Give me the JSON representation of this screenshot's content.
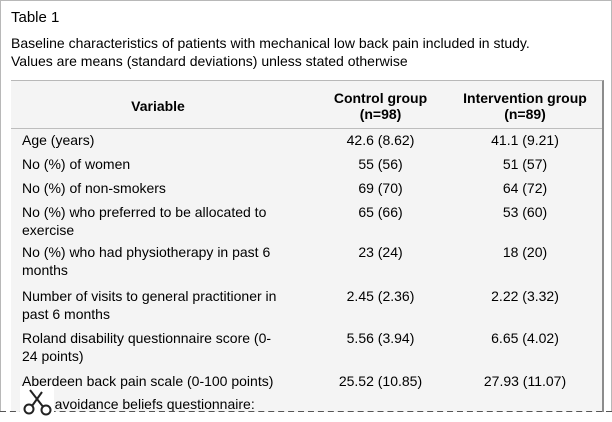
{
  "table": {
    "label": "Table 1",
    "caption_line1": "Baseline characteristics of patients with mechanical low back pain included in study.",
    "caption_line2": "Values are means (standard deviations) unless stated otherwise"
  },
  "headers": {
    "variable": "Variable",
    "control_line1": "Control group",
    "control_line2": "(n=98)",
    "intervention_line1": "Intervention group",
    "intervention_line2": "(n=89)"
  },
  "rows": [
    {
      "variable": [
        "Age (years)"
      ],
      "control": "42.6 (8.62)",
      "intervention": "41.1 (9.21)"
    },
    {
      "variable": [
        "No (%) of women"
      ],
      "control": "55 (56)",
      "intervention": "51 (57)"
    },
    {
      "variable": [
        "No (%) of non-smokers"
      ],
      "control": "69 (70)",
      "intervention": "64 (72)"
    },
    {
      "variable": [
        "No (%) who preferred to be allocated to",
        "exercise"
      ],
      "control": "65 (66)",
      "intervention": "53 (60)"
    },
    {
      "variable": [
        "No (%) who had physiotherapy in past 6",
        "months"
      ],
      "control": "23 (24)",
      "intervention": "18 (20)"
    },
    {
      "variable": [
        "Number of visits to general practitioner in",
        "past 6 months"
      ],
      "control": "2.45 (2.36)",
      "intervention": "2.22 (3.32)"
    },
    {
      "variable": [
        "Roland disability questionnaire score (0-",
        "24 points)"
      ],
      "control": "5.56 (3.94)",
      "intervention": "6.65 (4.02)"
    },
    {
      "variable": [
        "Aberdeen back pain scale (0-100 points)"
      ],
      "control": "25.52 (10.85)",
      "intervention": "27.93 (11.07)"
    },
    {
      "variable": [
        "Fear avoidance beliefs questionnaire:"
      ],
      "control": "",
      "intervention": ""
    }
  ],
  "icons": {
    "scissors": "scissors-icon"
  }
}
